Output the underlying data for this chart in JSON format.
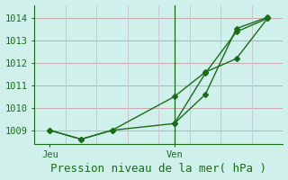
{
  "title": "Pression niveau de la mer( hPa )",
  "background_color": "#d0f0ec",
  "grid_color_h": "#c8a8a8",
  "grid_color_v": "#c8c8d0",
  "line_color": "#1a6b1a",
  "ylim": [
    1008.4,
    1014.6
  ],
  "yticks": [
    1009,
    1010,
    1011,
    1012,
    1013,
    1014
  ],
  "xlim": [
    0,
    16
  ],
  "xtick_positions": [
    1,
    9
  ],
  "xtick_labels": [
    "Jeu",
    "Ven"
  ],
  "vline_x": 9,
  "series1_x": [
    1,
    3,
    5,
    9,
    11,
    13,
    15
  ],
  "series1_y": [
    1009.0,
    1008.6,
    1009.0,
    1010.5,
    1011.6,
    1012.2,
    1014.0
  ],
  "series2_x": [
    1,
    3,
    5,
    9,
    11,
    13,
    15
  ],
  "series2_y": [
    1009.0,
    1008.6,
    1009.0,
    1009.3,
    1011.55,
    1013.4,
    1014.0
  ],
  "series3_x": [
    9,
    11,
    13,
    15
  ],
  "series3_y": [
    1009.3,
    1010.6,
    1013.55,
    1014.05
  ],
  "title_fontsize": 9,
  "tick_fontsize": 7.5
}
